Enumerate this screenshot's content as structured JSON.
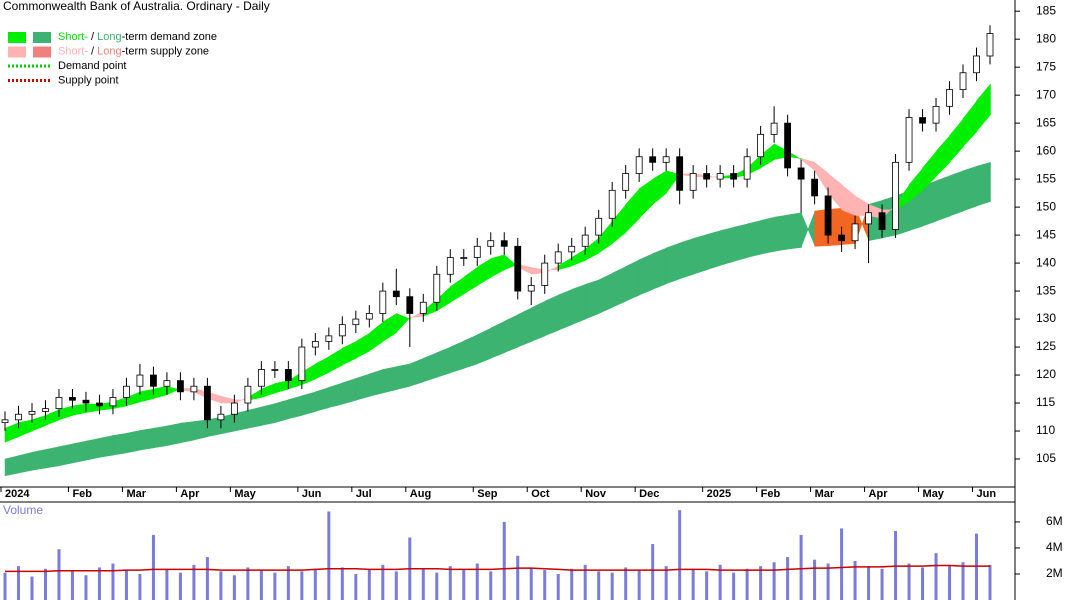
{
  "chart_data": {
    "type": "candlestick",
    "title": "Commonwealth Bank of Australia. Ordinary - Daily",
    "legend": [
      {
        "parts": [
          {
            "text": "Short-",
            "color": "#00e000"
          },
          {
            "text": " / "
          },
          {
            "text": "Long",
            "color": "#3cb371"
          },
          {
            "text": "-term demand zone"
          }
        ],
        "swatches": [
          "#00ee00",
          "#3cb371"
        ],
        "style": "box"
      },
      {
        "parts": [
          {
            "text": "Short-",
            "color": "#ffb3b3"
          },
          {
            "text": " / "
          },
          {
            "text": "Long",
            "color": "#f08080"
          },
          {
            "text": "-term supply zone"
          }
        ],
        "swatches": [
          "#ffb3b3",
          "#f08080"
        ],
        "style": "box"
      },
      {
        "parts": [
          {
            "text": "Demand point"
          }
        ],
        "swatches": [
          "#00cc00"
        ],
        "style": "dotted"
      },
      {
        "parts": [
          {
            "text": "Supply point"
          }
        ],
        "swatches": [
          "#cc0000"
        ],
        "style": "dotted"
      }
    ],
    "categories": [
      "2024",
      null,
      null,
      null,
      null,
      "Feb",
      null,
      null,
      null,
      "Mar",
      null,
      null,
      null,
      "Apr",
      null,
      null,
      null,
      "May",
      null,
      null,
      null,
      null,
      "Jun",
      null,
      null,
      null,
      "Jul",
      null,
      null,
      null,
      "Aug",
      null,
      null,
      null,
      null,
      "Sep",
      null,
      null,
      null,
      "Oct",
      null,
      null,
      null,
      "Nov",
      null,
      null,
      null,
      "Dec",
      null,
      null,
      null,
      null,
      "2025",
      null,
      null,
      null,
      "Feb",
      null,
      null,
      null,
      "Mar",
      null,
      null,
      null,
      "Apr",
      null,
      null,
      null,
      "May",
      null,
      null,
      null,
      "Jun",
      null
    ],
    "open": [
      111.5,
      112,
      113,
      113.5,
      114,
      116,
      115.5,
      115,
      114.5,
      116,
      118,
      120,
      118,
      119,
      117,
      118,
      112,
      113,
      115,
      118,
      121,
      121,
      119,
      125,
      126,
      127,
      129,
      130,
      131,
      135,
      134,
      131,
      133,
      138,
      141,
      141,
      143,
      144,
      143,
      135,
      136,
      140,
      142,
      143,
      145,
      148,
      153,
      156,
      159,
      158,
      159,
      153,
      156,
      155,
      156,
      155,
      159,
      163,
      165,
      157,
      155,
      152,
      145,
      144,
      147,
      149,
      146,
      158,
      166,
      165,
      168,
      171,
      174,
      177
    ],
    "high": [
      113.5,
      114.5,
      115,
      115.5,
      117.5,
      117.5,
      117,
      116.5,
      117.5,
      119.5,
      122,
      121.5,
      120.5,
      120.5,
      119.5,
      119.5,
      114.5,
      116.5,
      119.5,
      122.5,
      122.5,
      122.5,
      126.5,
      127.5,
      128.5,
      130.5,
      131.5,
      132.5,
      136.5,
      139,
      135.5,
      134.5,
      139.5,
      142.5,
      142.5,
      144.5,
      145.5,
      145.5,
      144.5,
      137.5,
      141.5,
      143.5,
      144.5,
      146.5,
      149.5,
      154.5,
      157.5,
      160.5,
      160.5,
      160.5,
      160.5,
      157.5,
      157.5,
      157.5,
      157.5,
      160.5,
      164.5,
      168,
      166.5,
      158.5,
      156.5,
      153.5,
      146.5,
      148.5,
      150.5,
      150.5,
      159.5,
      167.5,
      167.5,
      169.5,
      172.5,
      175.5,
      178.5,
      182.5
    ],
    "low": [
      110,
      110.5,
      111.5,
      112,
      112.5,
      114,
      113.5,
      113,
      113,
      114.5,
      116.5,
      116.5,
      116.5,
      115.5,
      115.5,
      110.5,
      110.5,
      111.5,
      113.5,
      116.5,
      119.5,
      117.5,
      117.5,
      123.5,
      124.5,
      125.5,
      127.5,
      128.5,
      129.5,
      132.5,
      125,
      129.5,
      131.5,
      136.5,
      139.5,
      139.5,
      141.5,
      141.5,
      133.5,
      132.5,
      134.5,
      138.5,
      140.5,
      141.5,
      143.5,
      146.5,
      151.5,
      154.5,
      156.5,
      156.5,
      150.5,
      151.5,
      153.5,
      153.5,
      153.5,
      153.5,
      157.5,
      161.5,
      155.5,
      149,
      150.5,
      143.5,
      142,
      142.5,
      140,
      144.5,
      144.5,
      156.5,
      163.5,
      163.5,
      166.5,
      169.5,
      172.5,
      175.5
    ],
    "close": [
      112,
      113,
      113.5,
      114,
      116,
      115.5,
      115,
      114.5,
      116,
      118,
      120,
      118,
      119,
      117,
      118,
      112,
      113,
      115,
      118,
      121,
      121,
      119,
      125,
      126,
      127,
      129,
      130,
      131,
      135,
      134,
      131,
      133,
      138,
      141,
      141,
      143,
      144,
      143,
      135,
      136,
      140,
      142,
      143,
      145,
      148,
      153,
      156,
      159,
      158,
      159,
      153,
      156,
      155,
      156,
      155,
      159,
      163,
      165,
      157,
      155,
      152,
      145,
      144,
      147,
      149,
      146,
      158,
      166,
      165,
      168,
      171,
      174,
      177,
      181
    ],
    "up_color": "#ffffff",
    "down_color": "#000000",
    "short_term": {
      "fast": [
        110.5,
        111.5,
        112,
        112.8,
        113.8,
        114.5,
        114.8,
        114.8,
        115.2,
        116,
        117,
        117.5,
        118,
        117.3,
        117,
        115.8,
        115,
        115,
        116,
        117.5,
        118.5,
        119,
        120.5,
        122,
        123.3,
        124.8,
        126,
        127.5,
        129.5,
        131,
        130,
        131.5,
        133.5,
        135.8,
        137.5,
        139.3,
        140.8,
        141.5,
        139.3,
        138,
        138.3,
        139.5,
        141,
        142.5,
        144.5,
        147.5,
        150.5,
        153.3,
        155,
        156.5,
        155.8,
        155.5,
        155.3,
        155.5,
        155.7,
        157,
        159.3,
        161.3,
        160,
        158.5,
        156.5,
        152.5,
        149.5,
        148.5,
        148.5,
        148,
        150.5,
        154,
        157,
        160,
        162.8,
        165.8,
        169,
        172
      ],
      "slow": [
        108,
        109,
        110,
        111,
        112,
        112.8,
        113.3,
        113.7,
        114,
        114.5,
        115.2,
        115.8,
        116.5,
        117.6,
        117.6,
        117,
        116.2,
        115.6,
        115.5,
        116,
        116.8,
        117.5,
        118.3,
        119.3,
        120.5,
        121.8,
        123,
        124.3,
        126,
        127.6,
        130.3,
        130.5,
        131.5,
        133,
        134.5,
        136,
        137.5,
        138.8,
        139.8,
        139.2,
        138.8,
        138.8,
        139.5,
        140.5,
        141.8,
        143.5,
        145.5,
        148,
        150.5,
        152.5,
        155.9,
        156,
        155.6,
        155.2,
        155.2,
        155.8,
        157,
        158.5,
        159,
        158.7,
        158,
        156,
        154,
        152,
        150.5,
        149.5,
        149.5,
        151,
        153,
        155.5,
        158,
        160.8,
        163.5,
        166.5
      ],
      "demand_color": "#00ee00",
      "supply_color": "#ffb3b3"
    },
    "long_term": {
      "fast": [
        105,
        105.6,
        106.2,
        106.7,
        107.2,
        107.7,
        108.2,
        108.7,
        109.2,
        109.6,
        110.1,
        110.5,
        110.9,
        111.4,
        111.7,
        112,
        112.5,
        113.1,
        113.7,
        114.3,
        114.9,
        115.6,
        116.3,
        117,
        117.8,
        118.6,
        119.4,
        120.2,
        121,
        121.5,
        122,
        123,
        124,
        125,
        126.1,
        127.2,
        128.4,
        129.6,
        130.8,
        132,
        133.2,
        134.3,
        135.3,
        136.2,
        137,
        138.2,
        139.4,
        140.6,
        141.7,
        142.7,
        143.6,
        144.4,
        145.1,
        145.8,
        146.4,
        147,
        147.6,
        148.2,
        148.6,
        149,
        143,
        143.1,
        143.3,
        143.5,
        150.5,
        151.2,
        152,
        152.9,
        153.8,
        154.7,
        155.6,
        156.5,
        157.3,
        158
      ],
      "slow": [
        102,
        102.5,
        103,
        103.4,
        103.8,
        104.3,
        104.8,
        105.3,
        105.7,
        106.1,
        106.6,
        107,
        107.4,
        107.9,
        108.4,
        109,
        109.5,
        110,
        110.5,
        111,
        111.5,
        112.2,
        112.8,
        113.5,
        114.2,
        114.8,
        115.5,
        116.2,
        116.8,
        117.4,
        118,
        118.8,
        119.6,
        120.4,
        121.2,
        122,
        123,
        124,
        125,
        126,
        127,
        128,
        129,
        130,
        131,
        132.1,
        133.2,
        134.3,
        135.3,
        136.3,
        137.2,
        138,
        138.8,
        139.6,
        140.3,
        141,
        141.6,
        142.1,
        142.5,
        142.8,
        149.3,
        149.6,
        149.8,
        150,
        144,
        144.5,
        145,
        145.8,
        146.6,
        147.5,
        148.4,
        149.3,
        150.2,
        151
      ],
      "demand_color": "#3cb371",
      "supply_color": "#f26522"
    },
    "ylim": [
      100,
      187
    ],
    "yticks": [
      105,
      110,
      115,
      120,
      125,
      130,
      135,
      140,
      145,
      150,
      155,
      160,
      165,
      170,
      175,
      180,
      185
    ],
    "volume": {
      "label": "Volume",
      "color": "#7b7bdc",
      "average_color": "#cc0000",
      "values": [
        2100000,
        2600000,
        1800000,
        2400000,
        3900000,
        2200000,
        1900000,
        2500000,
        2800000,
        2300000,
        2000000,
        5000000,
        2400000,
        2100000,
        2700000,
        3300000,
        2200000,
        1900000,
        2500000,
        2300000,
        2100000,
        2600000,
        2200000,
        2400000,
        6800000,
        2500000,
        2000000,
        2300000,
        2700000,
        2200000,
        4800000,
        2400000,
        2100000,
        2600000,
        2300000,
        2800000,
        2200000,
        6000000,
        3400000,
        2500000,
        2300000,
        2000000,
        2400000,
        2700000,
        2200000,
        2100000,
        2500000,
        2300000,
        4300000,
        2600000,
        6900000,
        2400000,
        2200000,
        2700000,
        2100000,
        2400000,
        2600000,
        2900000,
        3300000,
        5000000,
        3100000,
        2800000,
        5500000,
        3000000,
        2600000,
        2400000,
        5300000,
        2800000,
        2500000,
        3600000,
        2600000,
        2900000,
        5100000,
        2700000
      ],
      "average": [
        2200000,
        2200000,
        2200000,
        2200000,
        2250000,
        2250000,
        2250000,
        2250000,
        2250000,
        2300000,
        2300000,
        2350000,
        2350000,
        2350000,
        2350000,
        2350000,
        2300000,
        2300000,
        2300000,
        2300000,
        2300000,
        2300000,
        2300000,
        2350000,
        2400000,
        2400000,
        2400000,
        2350000,
        2350000,
        2350000,
        2400000,
        2400000,
        2400000,
        2350000,
        2350000,
        2350000,
        2350000,
        2400000,
        2450000,
        2450000,
        2400000,
        2350000,
        2300000,
        2300000,
        2300000,
        2300000,
        2300000,
        2300000,
        2300000,
        2300000,
        2350000,
        2350000,
        2350000,
        2300000,
        2300000,
        2300000,
        2300000,
        2300000,
        2350000,
        2400000,
        2450000,
        2450000,
        2500000,
        2550000,
        2550000,
        2550000,
        2600000,
        2600000,
        2600000,
        2650000,
        2650000,
        2600000,
        2600000,
        2600000
      ],
      "ylim": [
        0,
        7300000
      ],
      "yticks": [
        {
          "value": 2000000,
          "label": "2M"
        },
        {
          "value": 4000000,
          "label": "4M"
        },
        {
          "value": 6000000,
          "label": "6M"
        }
      ]
    }
  }
}
